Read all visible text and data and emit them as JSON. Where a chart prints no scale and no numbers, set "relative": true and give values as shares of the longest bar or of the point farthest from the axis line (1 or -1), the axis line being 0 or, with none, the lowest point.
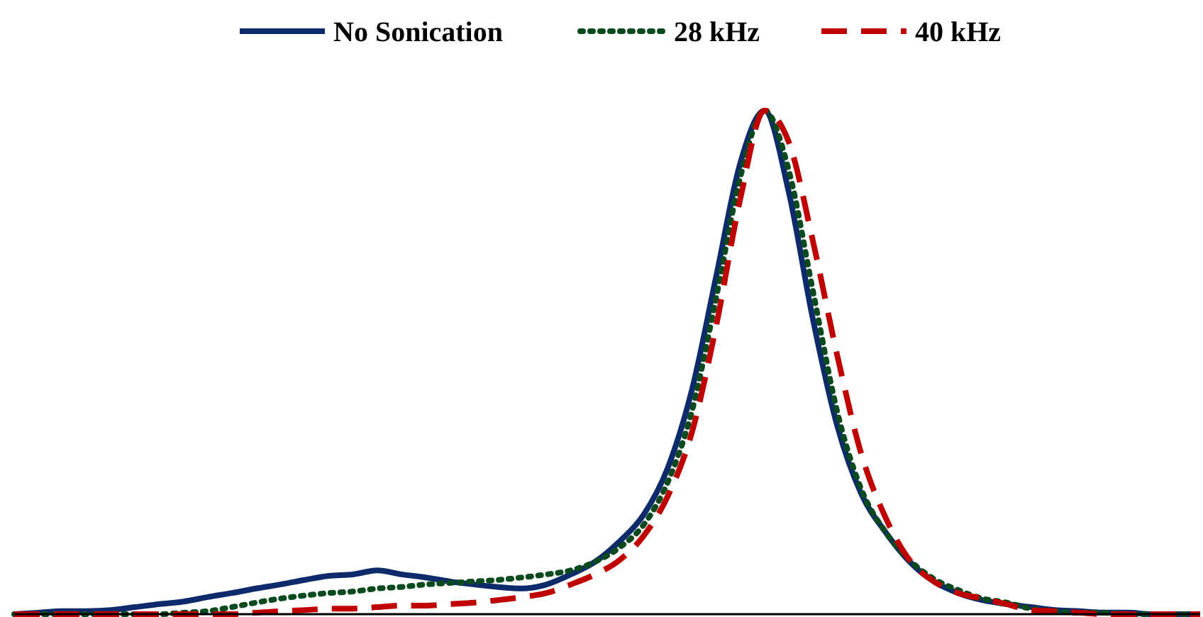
{
  "chart_data": {
    "type": "line",
    "relative": true,
    "legend": "top",
    "categories": [
      null,
      null,
      null,
      null,
      null,
      null,
      null,
      null,
      null,
      null,
      null,
      null,
      null,
      null,
      null,
      null,
      null,
      null,
      null,
      null,
      null,
      null,
      null,
      null,
      null,
      null,
      null,
      null,
      null,
      null,
      null,
      null,
      null,
      null,
      null,
      null,
      null,
      null,
      null,
      null,
      null,
      null,
      null,
      null,
      null,
      null,
      null,
      null,
      null,
      null
    ],
    "series": [
      {
        "name": "No Sonication",
        "color": "#0d2a6b",
        "line_style": "solid",
        "values": [
          0,
          0.003,
          0.006,
          0.006,
          0.008,
          0.014,
          0.02,
          0.025,
          0.034,
          0.042,
          0.051,
          0.059,
          0.068,
          0.076,
          0.079,
          0.087,
          0.079,
          0.073,
          0.065,
          0.059,
          0.054,
          0.051,
          0.059,
          0.079,
          0.104,
          0.144,
          0.197,
          0.29,
          0.445,
          0.67,
          0.896,
          1,
          0.839,
          0.586,
          0.375,
          0.239,
          0.163,
          0.104,
          0.065,
          0.042,
          0.028,
          0.02,
          0.014,
          0.008,
          0.006,
          0.003,
          0.003,
          0,
          0,
          0
        ]
      },
      {
        "name": "28 kHz",
        "color": "#0b4a1e",
        "line_style": "dotted",
        "values": [
          0,
          0,
          0,
          0,
          0,
          0,
          0,
          0.003,
          0.006,
          0.014,
          0.023,
          0.031,
          0.037,
          0.042,
          0.045,
          0.051,
          0.054,
          0.059,
          0.062,
          0.065,
          0.068,
          0.073,
          0.079,
          0.087,
          0.104,
          0.132,
          0.177,
          0.262,
          0.403,
          0.628,
          0.868,
          1,
          0.882,
          0.642,
          0.403,
          0.248,
          0.163,
          0.107,
          0.07,
          0.048,
          0.031,
          0.023,
          0.011,
          0.006,
          0.003,
          0.003,
          0,
          0,
          0,
          0
        ]
      },
      {
        "name": "40 kHz",
        "color": "#c00000",
        "line_style": "dashed",
        "values": [
          0,
          0,
          0,
          0,
          0,
          0,
          0,
          0,
          0,
          0,
          0.003,
          0.006,
          0.008,
          0.011,
          0.011,
          0.014,
          0.017,
          0.017,
          0.02,
          0.023,
          0.028,
          0.034,
          0.042,
          0.059,
          0.079,
          0.107,
          0.155,
          0.234,
          0.361,
          0.572,
          0.825,
          1,
          0.938,
          0.741,
          0.515,
          0.318,
          0.192,
          0.107,
          0.065,
          0.042,
          0.031,
          0.02,
          0.008,
          0.006,
          0.003,
          0,
          0,
          0,
          0,
          0
        ]
      }
    ]
  }
}
